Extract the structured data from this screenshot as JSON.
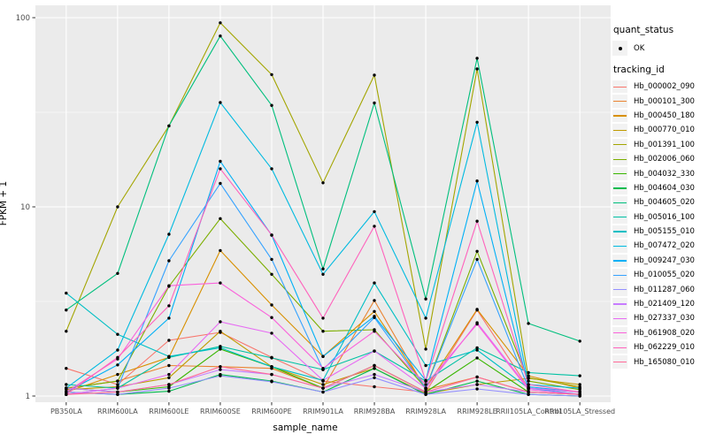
{
  "chart_data": {
    "type": "line",
    "title": "",
    "xlabel": "sample_name",
    "ylabel": "FPKM + 1",
    "y_scale": "log10",
    "ylim": [
      1,
      100
    ],
    "yticks": [
      1,
      10,
      100
    ],
    "y_minor_ticks": [
      3.1623,
      31.623
    ],
    "grid": "on",
    "panel_bg": "#EBEBEB",
    "grid_color": "#FFFFFF",
    "point_color": "#000000",
    "legend": {
      "position": "right",
      "quant_status_title": "quant_status",
      "quant_status_items": [
        {
          "label": "OK",
          "marker": "point"
        }
      ],
      "tracking_id_title": "tracking_id"
    },
    "categories": [
      "PB350LA",
      "RRIM600LA",
      "RRIM600LE",
      "RRIM600SE",
      "RRIM600PE",
      "RRIM901LA",
      "RRIM928BA",
      "RRIM928LA",
      "RRIM928LE",
      "RRII105LA_Control",
      "RRII105LA_Stressed"
    ],
    "series": [
      {
        "name": "Hb_000002_090",
        "color": "#F8766D",
        "values": [
          1.4,
          1.15,
          1.97,
          2.17,
          1.6,
          1.2,
          1.12,
          1.05,
          2.85,
          1.1,
          1.05
        ]
      },
      {
        "name": "Hb_000101_300",
        "color": "#EA8331",
        "values": [
          1.1,
          1.2,
          1.45,
          1.43,
          1.4,
          1.1,
          3.2,
          1.08,
          1.26,
          1.05,
          1.02
        ]
      },
      {
        "name": "Hb_000450_180",
        "color": "#D89000",
        "values": [
          1.05,
          1.3,
          1.6,
          5.88,
          3.03,
          1.62,
          2.8,
          1.1,
          2.87,
          1.28,
          1.1
        ]
      },
      {
        "name": "Hb_000770_010",
        "color": "#C09B00",
        "values": [
          1.08,
          1.12,
          1.25,
          2.2,
          1.43,
          1.15,
          1.4,
          1.03,
          1.15,
          1.24,
          1.15
        ]
      },
      {
        "name": "Hb_001391_100",
        "color": "#A3A500",
        "values": [
          2.2,
          10.0,
          26.8,
          94.0,
          50.0,
          13.4,
          49.7,
          1.77,
          53.6,
          1.25,
          1.12
        ]
      },
      {
        "name": "Hb_002006_060",
        "color": "#7CAE00",
        "values": [
          1.1,
          1.2,
          3.8,
          8.67,
          4.4,
          2.2,
          2.24,
          1.1,
          5.82,
          1.2,
          1.08
        ]
      },
      {
        "name": "Hb_004032_330",
        "color": "#39B600",
        "values": [
          1.1,
          1.05,
          1.12,
          1.77,
          1.43,
          1.1,
          1.45,
          1.05,
          1.59,
          1.05,
          1.02
        ]
      },
      {
        "name": "Hb_004604_030",
        "color": "#00BB4E",
        "values": [
          1.05,
          1.02,
          1.06,
          1.3,
          1.2,
          1.05,
          1.4,
          1.02,
          1.2,
          1.02,
          1.0
        ]
      },
      {
        "name": "Hb_004605_020",
        "color": "#00BF7D",
        "values": [
          2.85,
          4.45,
          26.8,
          80.0,
          34.4,
          4.7,
          35.4,
          3.26,
          61.0,
          2.42,
          1.95
        ]
      },
      {
        "name": "Hb_005016_100",
        "color": "#00C1A3",
        "values": [
          1.15,
          1.1,
          1.6,
          1.83,
          1.59,
          1.38,
          1.73,
          1.2,
          1.8,
          1.33,
          1.28
        ]
      },
      {
        "name": "Hb_005155_010",
        "color": "#00BFC4",
        "values": [
          3.5,
          2.12,
          1.62,
          1.8,
          1.43,
          1.21,
          3.96,
          1.45,
          1.75,
          1.1,
          1.05
        ]
      },
      {
        "name": "Hb_007472_020",
        "color": "#00BAE0",
        "values": [
          1.1,
          1.75,
          7.16,
          35.6,
          15.9,
          4.4,
          9.44,
          2.58,
          28.0,
          1.15,
          1.1
        ]
      },
      {
        "name": "Hb_009247_030",
        "color": "#00B0F6",
        "values": [
          1.05,
          1.46,
          2.58,
          17.4,
          7.08,
          1.62,
          2.64,
          1.21,
          13.7,
          1.12,
          1.05
        ]
      },
      {
        "name": "Hb_010055_020",
        "color": "#35A2FF",
        "values": [
          1.02,
          1.1,
          5.19,
          13.3,
          5.28,
          1.38,
          2.6,
          1.1,
          5.28,
          1.1,
          1.02
        ]
      },
      {
        "name": "Hb_011287_060",
        "color": "#9590FF",
        "values": [
          1.05,
          1.02,
          1.1,
          1.28,
          1.19,
          1.05,
          1.25,
          1.02,
          1.09,
          1.02,
          1.0
        ]
      },
      {
        "name": "Hb_021409_120",
        "color": "#C77CFF",
        "values": [
          1.1,
          1.05,
          1.15,
          1.38,
          1.3,
          1.1,
          1.3,
          1.05,
          1.15,
          1.05,
          1.02
        ]
      },
      {
        "name": "Hb_027337_030",
        "color": "#E76BF3",
        "values": [
          1.02,
          1.1,
          1.3,
          2.47,
          2.15,
          1.21,
          1.73,
          1.1,
          2.44,
          1.1,
          1.05
        ]
      },
      {
        "name": "Hb_061908_020",
        "color": "#FA62DB",
        "values": [
          1.05,
          1.57,
          3.83,
          3.96,
          2.6,
          1.4,
          2.2,
          1.15,
          2.4,
          1.08,
          1.02
        ]
      },
      {
        "name": "Hb_062229_010",
        "color": "#FF62BC",
        "values": [
          1.02,
          1.6,
          3.0,
          15.9,
          7.1,
          2.58,
          7.9,
          1.2,
          8.4,
          1.15,
          1.05
        ]
      },
      {
        "name": "Hb_165080_010",
        "color": "#FF6A98",
        "values": [
          1.02,
          1.05,
          1.15,
          1.43,
          1.3,
          1.1,
          1.45,
          1.05,
          1.26,
          1.05,
          1.02
        ]
      }
    ]
  }
}
